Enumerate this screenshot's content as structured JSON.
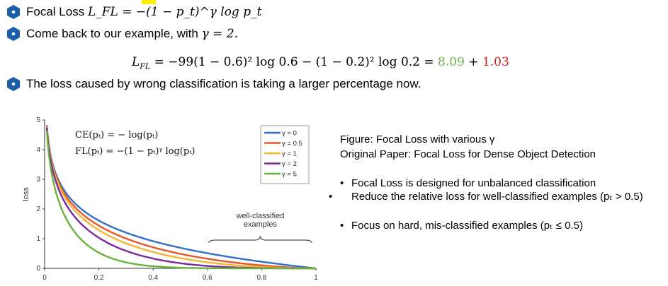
{
  "bullets": {
    "b1": {
      "label": "Focal Loss",
      "formula": "L_FL = −(1 − p_t)^γ log p_t"
    },
    "b2": {
      "text": "Come back to our example, with",
      "gamma": "γ = 2."
    },
    "b3": {
      "text": "The loss caused by wrong classification is taking a larger percentage now."
    }
  },
  "equation": {
    "lhs": "L",
    "lhs_sub": "FL",
    "body": " = −99(1 − 0.6)² log 0.6 − (1 − 0.2)² log 0.2 = ",
    "term1": "8.09",
    "plus": " + ",
    "term2": "1.03",
    "term1_color": "#6bb24a",
    "term2_color": "#d7191c"
  },
  "chart_data": {
    "type": "line",
    "ylabel": "loss",
    "xlim": [
      0,
      1
    ],
    "ylim": [
      0,
      5
    ],
    "x_ticks": [
      "0",
      "0.2",
      "0.4",
      "0.6",
      "0.8",
      "1"
    ],
    "y_ticks": [
      "0",
      "1",
      "2",
      "3",
      "4",
      "5"
    ],
    "ce_formula": "CE(pₜ) = − log(pₜ)",
    "fl_formula": "FL(pₜ) = −(1 − pₜ)ᵞ log(pₜ)",
    "annotation": "well-classified examples",
    "annotation_lines": [
      "well-classified",
      "examples"
    ],
    "annotation_range": [
      0.6,
      1.0
    ],
    "legend_position": "top-right",
    "series": [
      {
        "name": "γ = 0",
        "gamma": 0,
        "color": "#2f6fcb"
      },
      {
        "name": "γ = 0.5",
        "gamma": 0.5,
        "color": "#e8562a"
      },
      {
        "name": "γ = 1",
        "gamma": 1,
        "color": "#f5b52e"
      },
      {
        "name": "γ = 2",
        "gamma": 2,
        "color": "#7a2a9c"
      },
      {
        "name": "γ = 5",
        "gamma": 5,
        "color": "#69b33a"
      }
    ]
  },
  "right_panel": {
    "caption": "Figure: Focal Loss with various γ",
    "source": "Original Paper: Focal Loss for Dense Object Detection",
    "points": [
      "Focal Loss is designed for unbalanced classification",
      "Reduce the relative loss for well-classified examples (pₜ > 0.5)",
      "Focus on hard, mis-classified examples (pₜ ≤ 0.5)"
    ]
  },
  "colors": {
    "bullet_hex": "#1a5fa8"
  }
}
